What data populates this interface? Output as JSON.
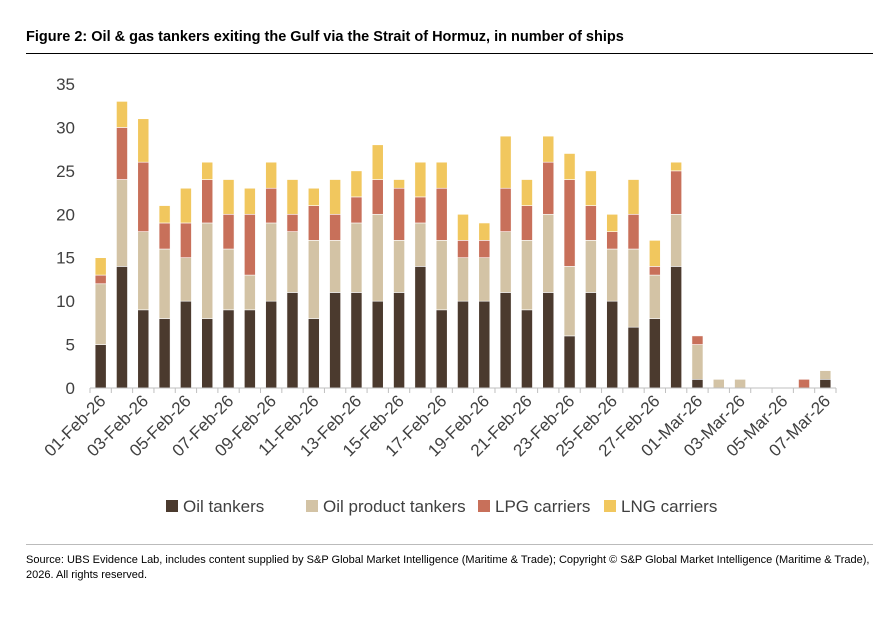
{
  "title": "Figure 2: Oil & gas tankers exiting the Gulf via the Strait of Hormuz, in number of ships",
  "source": "Source: UBS Evidence Lab, includes content supplied by S&P Global Market Intelligence (Maritime & Trade); Copyright © S&P Global Market Intelligence (Maritime & Trade), 2026. All rights reserved.",
  "chart_data": {
    "type": "bar",
    "stacked": true,
    "title": "Figure 2: Oil & gas tankers exiting the Gulf via the Strait of Hormuz, in number of ships",
    "xlabel": "",
    "ylabel": "",
    "ylim": [
      0,
      35
    ],
    "yticks": [
      0,
      5,
      10,
      15,
      20,
      25,
      30,
      35
    ],
    "grid": false,
    "legend": "bottom",
    "categories": [
      "01-Feb-26",
      "02-Feb-26",
      "03-Feb-26",
      "04-Feb-26",
      "05-Feb-26",
      "06-Feb-26",
      "07-Feb-26",
      "08-Feb-26",
      "09-Feb-26",
      "10-Feb-26",
      "11-Feb-26",
      "12-Feb-26",
      "13-Feb-26",
      "14-Feb-26",
      "15-Feb-26",
      "16-Feb-26",
      "17-Feb-26",
      "18-Feb-26",
      "19-Feb-26",
      "20-Feb-26",
      "21-Feb-26",
      "22-Feb-26",
      "23-Feb-26",
      "24-Feb-26",
      "25-Feb-26",
      "26-Feb-26",
      "27-Feb-26",
      "28-Feb-26",
      "01-Mar-26",
      "02-Mar-26",
      "03-Mar-26",
      "04-Mar-26",
      "05-Mar-26",
      "06-Mar-26",
      "07-Mar-26"
    ],
    "tick_labels": [
      "01-Feb-26",
      "03-Feb-26",
      "05-Feb-26",
      "07-Feb-26",
      "09-Feb-26",
      "11-Feb-26",
      "13-Feb-26",
      "15-Feb-26",
      "17-Feb-26",
      "19-Feb-26",
      "21-Feb-26",
      "23-Feb-26",
      "25-Feb-26",
      "27-Feb-26",
      "01-Mar-26",
      "03-Mar-26",
      "05-Mar-26",
      "07-Mar-26"
    ],
    "series": [
      {
        "name": "Oil tankers",
        "color": "#4b3a2e",
        "values": [
          5,
          14,
          9,
          8,
          10,
          8,
          9,
          9,
          10,
          11,
          8,
          11,
          11,
          10,
          11,
          14,
          9,
          10,
          10,
          11,
          9,
          11,
          6,
          11,
          10,
          7,
          8,
          14,
          1,
          0,
          0,
          0,
          0,
          0,
          1
        ]
      },
      {
        "name": "Oil product tankers",
        "color": "#d3c3a5",
        "values": [
          7,
          10,
          9,
          8,
          5,
          11,
          7,
          4,
          9,
          7,
          9,
          6,
          8,
          10,
          6,
          5,
          8,
          5,
          5,
          7,
          8,
          9,
          8,
          6,
          6,
          9,
          5,
          6,
          4,
          1,
          1,
          0,
          0,
          0,
          1
        ]
      },
      {
        "name": "LPG carriers",
        "color": "#c8705a",
        "values": [
          1,
          6,
          8,
          3,
          4,
          5,
          4,
          7,
          4,
          2,
          4,
          3,
          3,
          4,
          6,
          3,
          6,
          2,
          2,
          5,
          4,
          6,
          10,
          4,
          2,
          4,
          1,
          5,
          1,
          0,
          0,
          0,
          0,
          1,
          0
        ]
      },
      {
        "name": "LNG carriers",
        "color": "#f1c75e",
        "values": [
          2,
          3,
          5,
          2,
          4,
          2,
          4,
          3,
          3,
          4,
          2,
          4,
          3,
          4,
          1,
          4,
          3,
          3,
          2,
          6,
          3,
          3,
          3,
          4,
          2,
          4,
          3,
          1,
          0,
          0,
          0,
          0,
          0,
          0,
          0
        ]
      }
    ]
  }
}
